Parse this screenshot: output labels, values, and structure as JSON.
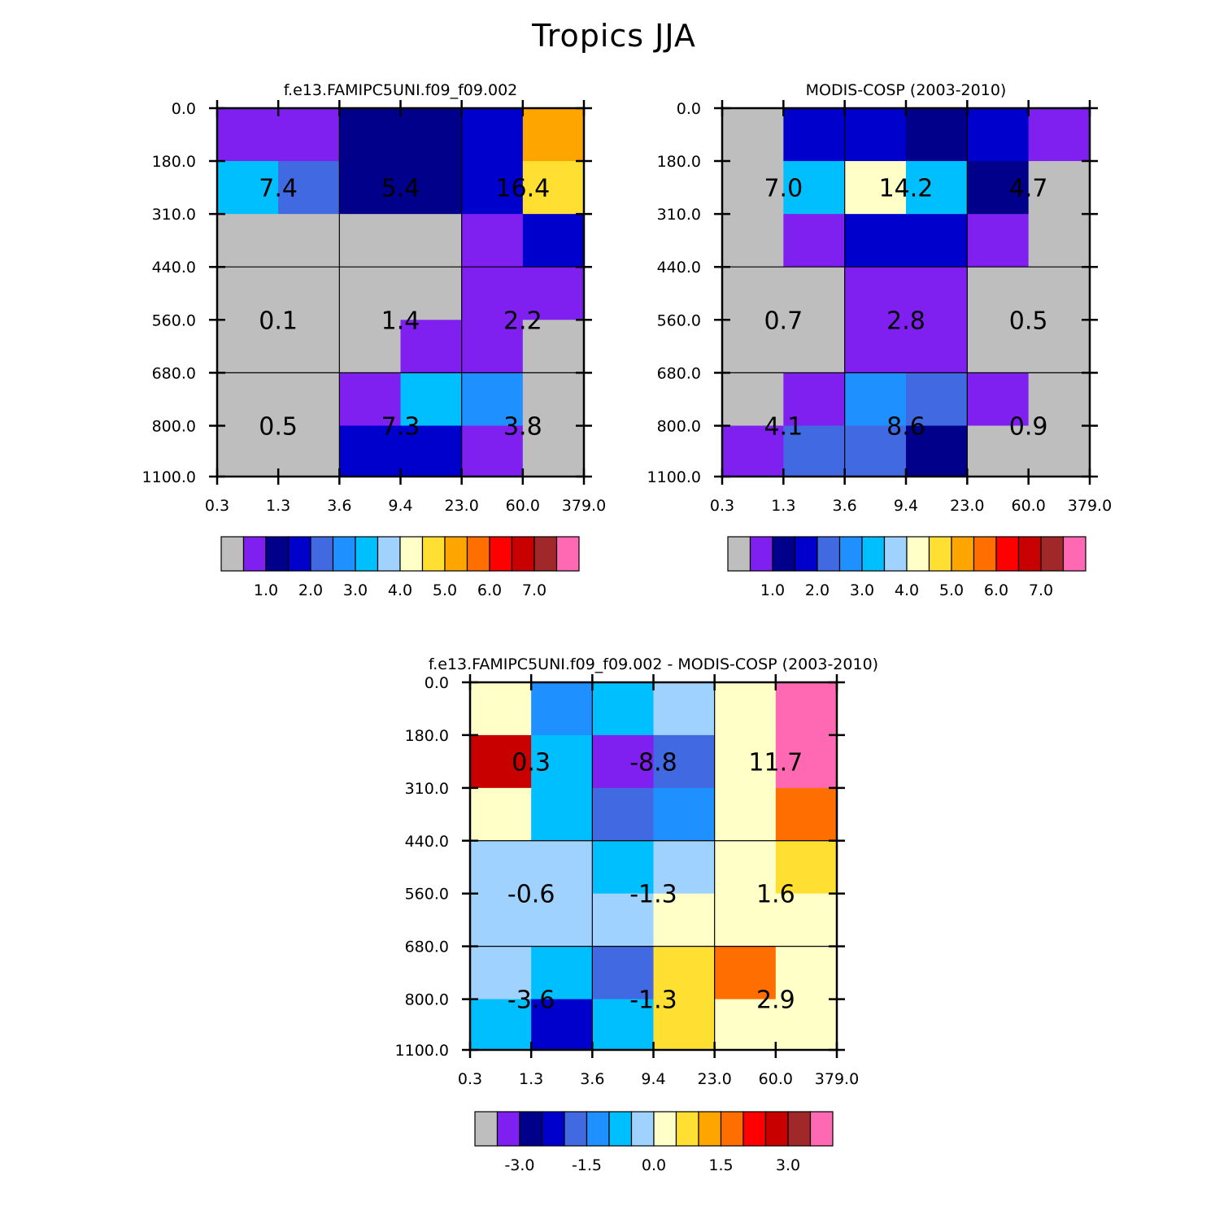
{
  "title": "Tropics JJA",
  "colors": {
    "palette": [
      "#bebebe",
      "#8020f0",
      "#00008b",
      "#0000cd",
      "#4169e1",
      "#1e90ff",
      "#00bfff",
      "#a0d2ff",
      "#ffffc8",
      "#ffe032",
      "#ffa500",
      "#ff6e00",
      "#ff0000",
      "#c80000",
      "#a02828",
      "#ff69b4"
    ]
  },
  "chart_data": [
    {
      "type": "heatmap",
      "title": "f.e13.FAMIPC5UNI.f09_f09.002",
      "x_tick_labels": [
        "0.3",
        "1.3",
        "3.6",
        "9.4",
        "23.0",
        "60.0",
        "379.0"
      ],
      "y_tick_labels": [
        "0.0",
        "180.0",
        "310.0",
        "440.0",
        "560.0",
        "680.0",
        "800.0",
        "1100.0"
      ],
      "cell_color_index": [
        [
          1,
          1,
          2,
          2,
          3,
          10
        ],
        [
          6,
          4,
          2,
          2,
          3,
          9
        ],
        [
          0,
          0,
          0,
          0,
          1,
          3
        ],
        [
          0,
          0,
          0,
          0,
          1,
          1
        ],
        [
          0,
          0,
          0,
          1,
          1,
          0
        ],
        [
          0,
          0,
          1,
          6,
          5,
          0
        ],
        [
          0,
          0,
          3,
          3,
          1,
          0
        ]
      ],
      "group_labels": [
        [
          "7.4",
          "5.4",
          "16.4"
        ],
        [
          "0.1",
          "1.4",
          "2.2"
        ],
        [
          "0.5",
          "7.3",
          "3.8"
        ]
      ],
      "colorbar_labels": [
        "1.0",
        "2.0",
        "3.0",
        "4.0",
        "5.0",
        "6.0",
        "7.0"
      ]
    },
    {
      "type": "heatmap",
      "title": "MODIS-COSP (2003-2010)",
      "x_tick_labels": [
        "0.3",
        "1.3",
        "3.6",
        "9.4",
        "23.0",
        "60.0",
        "379.0"
      ],
      "y_tick_labels": [
        "0.0",
        "180.0",
        "310.0",
        "440.0",
        "560.0",
        "680.0",
        "800.0",
        "1100.0"
      ],
      "cell_color_index": [
        [
          0,
          3,
          3,
          2,
          3,
          1
        ],
        [
          0,
          6,
          8,
          6,
          2,
          0
        ],
        [
          0,
          1,
          3,
          3,
          1,
          0
        ],
        [
          0,
          0,
          1,
          1,
          0,
          0
        ],
        [
          0,
          0,
          1,
          1,
          0,
          0
        ],
        [
          0,
          1,
          5,
          4,
          1,
          0
        ],
        [
          1,
          4,
          4,
          2,
          0,
          0
        ]
      ],
      "group_labels": [
        [
          "7.0",
          "14.2",
          "4.7"
        ],
        [
          "0.7",
          "2.8",
          "0.5"
        ],
        [
          "4.1",
          "8.6",
          "0.9"
        ]
      ],
      "colorbar_labels": [
        "1.0",
        "2.0",
        "3.0",
        "4.0",
        "5.0",
        "6.0",
        "7.0"
      ]
    },
    {
      "type": "heatmap",
      "title": "f.e13.FAMIPC5UNI.f09_f09.002 - MODIS-COSP (2003-2010)",
      "x_tick_labels": [
        "0.3",
        "1.3",
        "3.6",
        "9.4",
        "23.0",
        "60.0",
        "379.0"
      ],
      "y_tick_labels": [
        "0.0",
        "180.0",
        "310.0",
        "440.0",
        "560.0",
        "680.0",
        "800.0",
        "1100.0"
      ],
      "cell_color_index": [
        [
          8,
          5,
          6,
          7,
          8,
          15
        ],
        [
          13,
          6,
          1,
          4,
          8,
          15
        ],
        [
          8,
          6,
          4,
          5,
          8,
          11
        ],
        [
          7,
          7,
          6,
          7,
          8,
          9
        ],
        [
          7,
          7,
          7,
          8,
          8,
          8
        ],
        [
          7,
          6,
          4,
          9,
          11,
          8
        ],
        [
          6,
          3,
          6,
          9,
          8,
          8
        ]
      ],
      "group_labels": [
        [
          "0.3",
          "-8.8",
          "11.7"
        ],
        [
          "-0.6",
          "-1.3",
          "1.6"
        ],
        [
          "-3.6",
          "-1.3",
          "2.9"
        ]
      ],
      "colorbar_labels": [
        "-3.0",
        "-1.5",
        "0.0",
        "1.5",
        "3.0"
      ]
    }
  ]
}
